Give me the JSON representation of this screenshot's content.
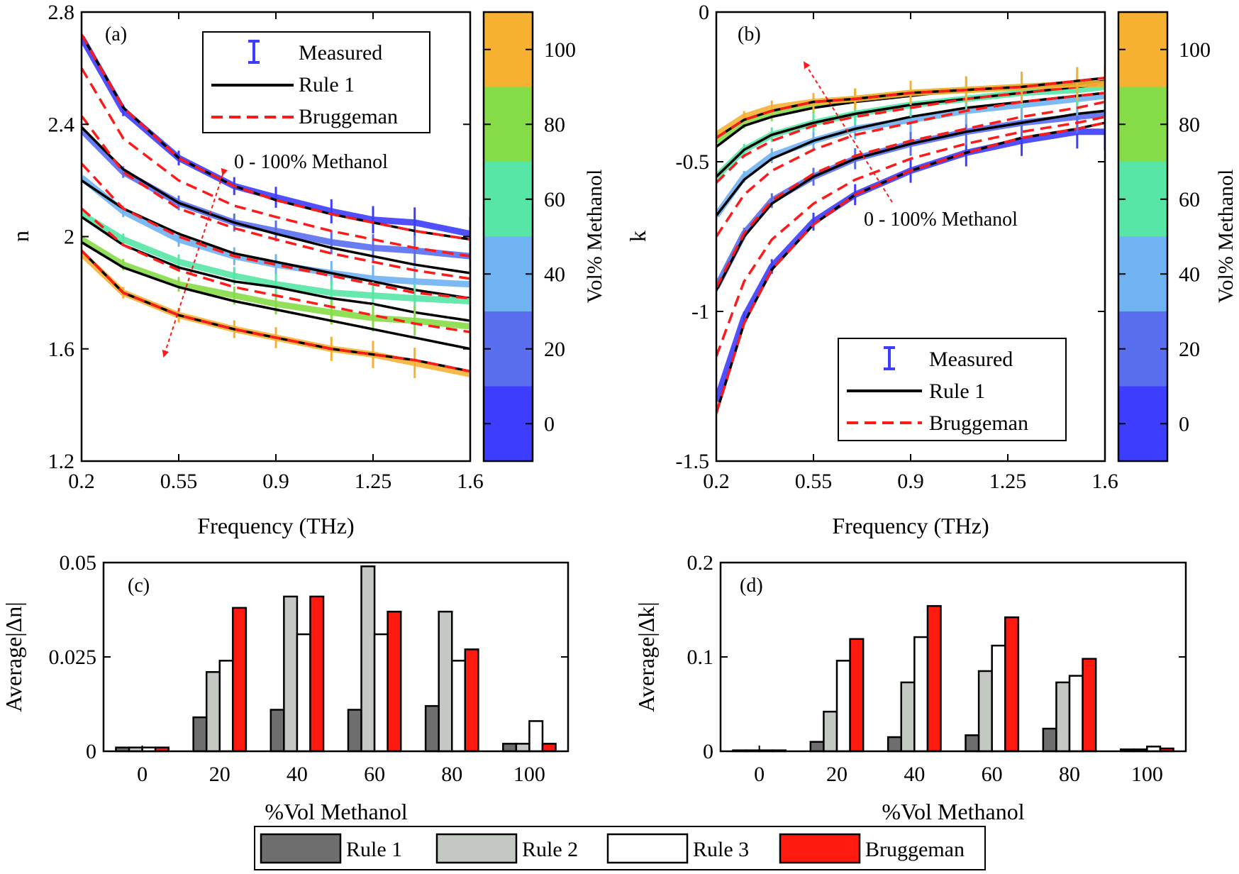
{
  "colors": {
    "measured_0": "#3d3dff",
    "measured_20": "#5a6ef0",
    "measured_40": "#6fb3f2",
    "measured_60": "#57e6a6",
    "measured_80": "#86dc48",
    "measured_100": "#f6b133",
    "rule1_line": "#000000",
    "bruggeman_line": "#ff1a1a",
    "rule1_bar": "#6e6e6e",
    "rule2_bar": "#c3c8c3",
    "rule3_bar": "#ffffff",
    "bruggeman_bar": "#ff1a10"
  },
  "chart_data": [
    {
      "panel": "(a)",
      "type": "line",
      "xlabel": "Frequency (THz)",
      "ylabel": "n",
      "xlim": [
        0.2,
        1.6
      ],
      "ylim": [
        1.2,
        2.8
      ],
      "xticks": [
        "0.2",
        "0.55",
        "0.9",
        "1.25",
        "1.6"
      ],
      "yticks": [
        "1.2",
        "1.6",
        "2",
        "2.4",
        "2.8"
      ],
      "legend": [
        "Measured",
        "Rule 1",
        "Bruggeman"
      ],
      "legend_position": "top-right",
      "annotation": "0 - 100% Methanol",
      "series": [
        {
          "name": "0%",
          "x": [
            0.2,
            0.35,
            0.55,
            0.75,
            0.9,
            1.1,
            1.25,
            1.4,
            1.6
          ],
          "measured": [
            2.71,
            2.45,
            2.28,
            2.18,
            2.14,
            2.09,
            2.06,
            2.05,
            2.01
          ],
          "rule1": [
            2.72,
            2.46,
            2.28,
            2.18,
            2.13,
            2.08,
            2.05,
            2.02,
            1.99
          ],
          "bruggeman": [
            2.72,
            2.46,
            2.28,
            2.18,
            2.13,
            2.08,
            2.05,
            2.02,
            1.99
          ]
        },
        {
          "name": "20%",
          "x": [
            0.2,
            0.35,
            0.55,
            0.75,
            0.9,
            1.1,
            1.25,
            1.4,
            1.6
          ],
          "measured": [
            2.38,
            2.23,
            2.12,
            2.05,
            2.02,
            1.98,
            1.96,
            1.95,
            1.93
          ],
          "rule1": [
            2.39,
            2.24,
            2.12,
            2.05,
            2.01,
            1.96,
            1.93,
            1.9,
            1.87
          ],
          "bruggeman": [
            2.6,
            2.35,
            2.2,
            2.11,
            2.07,
            2.02,
            1.99,
            1.96,
            1.93
          ]
        },
        {
          "name": "40%",
          "x": [
            0.2,
            0.35,
            0.55,
            0.75,
            0.9,
            1.1,
            1.25,
            1.4,
            1.6
          ],
          "measured": [
            2.21,
            2.09,
            1.99,
            1.93,
            1.9,
            1.87,
            1.85,
            1.84,
            1.83
          ],
          "rule1": [
            2.2,
            2.1,
            2.01,
            1.94,
            1.91,
            1.87,
            1.84,
            1.81,
            1.78
          ],
          "bruggeman": [
            2.43,
            2.23,
            2.1,
            2.03,
            1.99,
            1.94,
            1.91,
            1.88,
            1.85
          ]
        },
        {
          "name": "60%",
          "x": [
            0.2,
            0.35,
            0.55,
            0.75,
            0.9,
            1.1,
            1.25,
            1.4,
            1.6
          ],
          "measured": [
            2.08,
            1.99,
            1.91,
            1.86,
            1.83,
            1.8,
            1.79,
            1.78,
            1.77
          ],
          "rule1": [
            2.07,
            1.97,
            1.89,
            1.84,
            1.82,
            1.78,
            1.76,
            1.73,
            1.7
          ],
          "bruggeman": [
            2.26,
            2.1,
            2.0,
            1.93,
            1.9,
            1.86,
            1.83,
            1.8,
            1.78
          ]
        },
        {
          "name": "80%",
          "x": [
            0.2,
            0.35,
            0.55,
            0.75,
            0.9,
            1.1,
            1.25,
            1.4,
            1.6
          ],
          "measured": [
            1.99,
            1.9,
            1.83,
            1.79,
            1.76,
            1.73,
            1.71,
            1.7,
            1.68
          ],
          "rule1": [
            1.98,
            1.89,
            1.82,
            1.77,
            1.74,
            1.7,
            1.67,
            1.64,
            1.6
          ],
          "bruggeman": [
            2.1,
            1.97,
            1.88,
            1.82,
            1.79,
            1.75,
            1.72,
            1.69,
            1.66
          ]
        },
        {
          "name": "100%",
          "x": [
            0.2,
            0.35,
            0.55,
            0.75,
            0.9,
            1.1,
            1.25,
            1.4,
            1.6
          ],
          "measured": [
            1.94,
            1.8,
            1.72,
            1.67,
            1.64,
            1.6,
            1.58,
            1.55,
            1.51
          ],
          "rule1": [
            1.95,
            1.8,
            1.72,
            1.67,
            1.64,
            1.6,
            1.58,
            1.56,
            1.52
          ],
          "bruggeman": [
            1.95,
            1.8,
            1.72,
            1.67,
            1.64,
            1.6,
            1.58,
            1.56,
            1.52
          ]
        }
      ]
    },
    {
      "panel": "(b)",
      "type": "line",
      "xlabel": "Frequency (THz)",
      "ylabel": "k",
      "xlim": [
        0.2,
        1.6
      ],
      "ylim": [
        -1.5,
        0
      ],
      "xticks": [
        "0.2",
        "0.55",
        "0.9",
        "1.25",
        "1.6"
      ],
      "yticks": [
        "-1.5",
        "-1",
        "-0.5",
        "0"
      ],
      "legend": [
        "Measured",
        "Rule 1",
        "Bruggeman"
      ],
      "legend_position": "bottom-right",
      "annotation": "0 - 100% Methanol",
      "series": [
        {
          "name": "0%",
          "x": [
            0.2,
            0.3,
            0.4,
            0.55,
            0.7,
            0.9,
            1.1,
            1.3,
            1.5,
            1.6
          ],
          "measured": [
            -1.3,
            -1.02,
            -0.85,
            -0.7,
            -0.61,
            -0.53,
            -0.47,
            -0.43,
            -0.4,
            -0.4
          ],
          "rule1": [
            -1.34,
            -1.04,
            -0.86,
            -0.71,
            -0.61,
            -0.53,
            -0.47,
            -0.42,
            -0.39,
            -0.37
          ],
          "bruggeman": [
            -1.34,
            -1.04,
            -0.86,
            -0.71,
            -0.61,
            -0.53,
            -0.47,
            -0.42,
            -0.39,
            -0.37
          ]
        },
        {
          "name": "20%",
          "x": [
            0.2,
            0.3,
            0.4,
            0.55,
            0.7,
            0.9,
            1.1,
            1.3,
            1.5,
            1.6
          ],
          "measured": [
            -0.92,
            -0.74,
            -0.63,
            -0.55,
            -0.49,
            -0.44,
            -0.4,
            -0.37,
            -0.35,
            -0.34
          ],
          "rule1": [
            -0.93,
            -0.75,
            -0.64,
            -0.55,
            -0.49,
            -0.44,
            -0.4,
            -0.37,
            -0.34,
            -0.33
          ],
          "bruggeman": [
            -1.15,
            -0.9,
            -0.76,
            -0.64,
            -0.56,
            -0.49,
            -0.44,
            -0.4,
            -0.37,
            -0.35
          ]
        },
        {
          "name": "40%",
          "x": [
            0.2,
            0.3,
            0.4,
            0.55,
            0.7,
            0.9,
            1.1,
            1.3,
            1.5,
            1.6
          ],
          "measured": [
            -0.68,
            -0.55,
            -0.48,
            -0.43,
            -0.39,
            -0.36,
            -0.33,
            -0.31,
            -0.29,
            -0.28
          ],
          "rule1": [
            -0.68,
            -0.56,
            -0.49,
            -0.43,
            -0.39,
            -0.35,
            -0.32,
            -0.3,
            -0.28,
            -0.27
          ],
          "bruggeman": [
            -0.92,
            -0.74,
            -0.63,
            -0.54,
            -0.48,
            -0.43,
            -0.39,
            -0.35,
            -0.32,
            -0.3
          ]
        },
        {
          "name": "60%",
          "x": [
            0.2,
            0.3,
            0.4,
            0.55,
            0.7,
            0.9,
            1.1,
            1.3,
            1.5,
            1.6
          ],
          "measured": [
            -0.55,
            -0.46,
            -0.41,
            -0.37,
            -0.34,
            -0.31,
            -0.29,
            -0.27,
            -0.26,
            -0.25
          ],
          "rule1": [
            -0.55,
            -0.46,
            -0.41,
            -0.37,
            -0.34,
            -0.31,
            -0.29,
            -0.27,
            -0.25,
            -0.24
          ],
          "bruggeman": [
            -0.75,
            -0.61,
            -0.53,
            -0.46,
            -0.41,
            -0.37,
            -0.33,
            -0.3,
            -0.28,
            -0.27
          ]
        },
        {
          "name": "80%",
          "x": [
            0.2,
            0.3,
            0.4,
            0.55,
            0.7,
            0.9,
            1.1,
            1.3,
            1.5,
            1.6
          ],
          "measured": [
            -0.43,
            -0.37,
            -0.34,
            -0.31,
            -0.29,
            -0.27,
            -0.26,
            -0.25,
            -0.24,
            -0.24
          ],
          "rule1": [
            -0.45,
            -0.38,
            -0.35,
            -0.32,
            -0.3,
            -0.28,
            -0.26,
            -0.25,
            -0.24,
            -0.23
          ],
          "bruggeman": [
            -0.57,
            -0.48,
            -0.43,
            -0.38,
            -0.35,
            -0.32,
            -0.29,
            -0.27,
            -0.25,
            -0.24
          ]
        },
        {
          "name": "100%",
          "x": [
            0.2,
            0.3,
            0.4,
            0.55,
            0.7,
            0.9,
            1.1,
            1.3,
            1.5,
            1.6
          ],
          "measured": [
            -0.41,
            -0.35,
            -0.32,
            -0.3,
            -0.29,
            -0.27,
            -0.26,
            -0.25,
            -0.24,
            -0.24
          ],
          "rule1": [
            -0.42,
            -0.36,
            -0.33,
            -0.3,
            -0.29,
            -0.27,
            -0.26,
            -0.25,
            -0.23,
            -0.22
          ],
          "bruggeman": [
            -0.42,
            -0.36,
            -0.33,
            -0.3,
            -0.29,
            -0.27,
            -0.26,
            -0.25,
            -0.23,
            -0.22
          ]
        }
      ]
    },
    {
      "panel": "colorbar",
      "type": "heatmap",
      "label": "Vol% Methanol",
      "range": [
        -10,
        110
      ],
      "levels": [
        0,
        20,
        40,
        60,
        80,
        100
      ],
      "ticks": [
        "0",
        "20",
        "40",
        "60",
        "80",
        "100"
      ]
    },
    {
      "panel": "(c)",
      "type": "bar",
      "xlabel": "%Vol Methanol",
      "ylabel": "Average|Δn|",
      "ylim": [
        0,
        0.05
      ],
      "yticks": [
        "0",
        "0.025",
        "0.05"
      ],
      "categories": [
        "0",
        "20",
        "40",
        "60",
        "80",
        "100"
      ],
      "series": [
        {
          "name": "Rule 1",
          "values": [
            0.001,
            0.009,
            0.011,
            0.011,
            0.012,
            0.002
          ]
        },
        {
          "name": "Rule 2",
          "values": [
            0.001,
            0.021,
            0.041,
            0.049,
            0.037,
            0.002
          ]
        },
        {
          "name": "Rule 3",
          "values": [
            0.001,
            0.024,
            0.031,
            0.031,
            0.024,
            0.008
          ]
        },
        {
          "name": "Bruggeman",
          "values": [
            0.001,
            0.038,
            0.041,
            0.037,
            0.027,
            0.002
          ]
        }
      ]
    },
    {
      "panel": "(d)",
      "type": "bar",
      "xlabel": "%Vol Methanol",
      "ylabel": "Average|Δk|",
      "ylim": [
        0,
        0.2
      ],
      "yticks": [
        "0",
        "0.1",
        "0.2"
      ],
      "categories": [
        "0",
        "20",
        "40",
        "60",
        "80",
        "100"
      ],
      "series": [
        {
          "name": "Rule 1",
          "values": [
            0.001,
            0.01,
            0.015,
            0.017,
            0.024,
            0.002
          ]
        },
        {
          "name": "Rule 2",
          "values": [
            0.001,
            0.042,
            0.073,
            0.085,
            0.073,
            0.002
          ]
        },
        {
          "name": "Rule 3",
          "values": [
            0.001,
            0.096,
            0.121,
            0.112,
            0.08,
            0.005
          ]
        },
        {
          "name": "Bruggeman",
          "values": [
            0.001,
            0.119,
            0.154,
            0.142,
            0.098,
            0.003
          ]
        }
      ]
    }
  ],
  "bar_legend": [
    "Rule 1",
    "Rule 2",
    "Rule 3",
    "Bruggeman"
  ]
}
